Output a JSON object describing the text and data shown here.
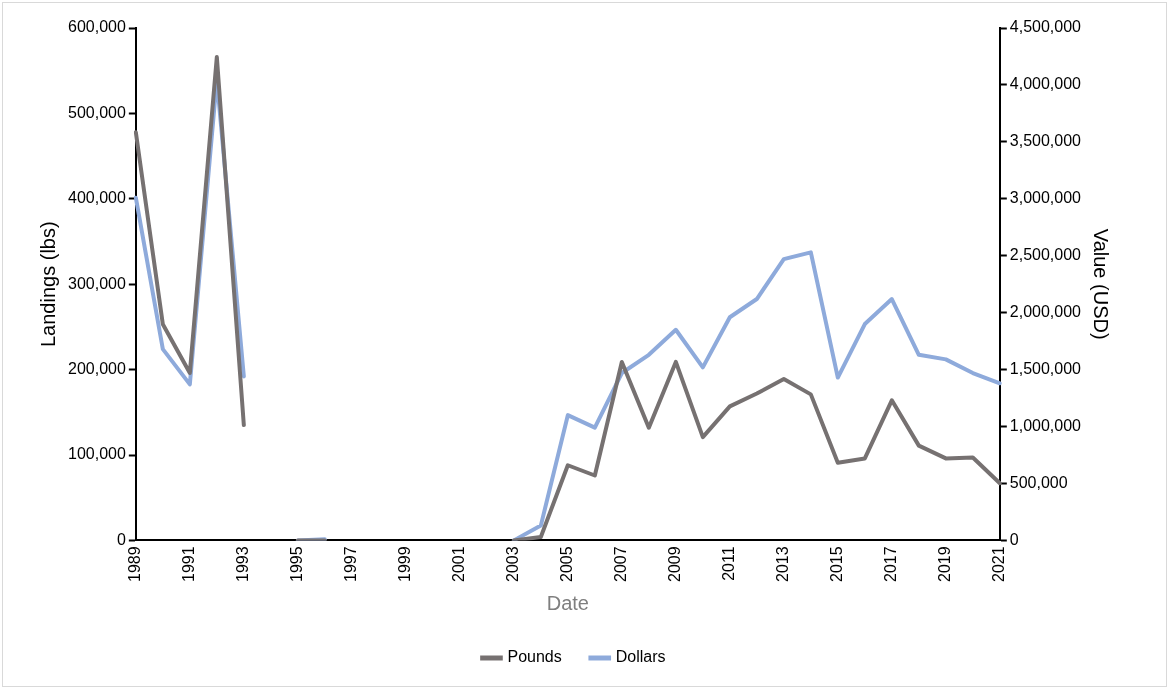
{
  "chart_data": {
    "type": "line",
    "xlabel": "Date",
    "ylabel": "Landings (lbs)",
    "y2label": "Value (USD)",
    "categories": [
      "1989",
      null,
      "1991",
      null,
      "1993",
      null,
      "1995",
      null,
      "1997",
      null,
      "1999",
      null,
      "2001",
      null,
      "2003",
      null,
      "2005",
      null,
      "2007",
      null,
      "2009",
      null,
      "2011",
      null,
      "2013",
      null,
      "2015",
      null,
      "2017",
      null,
      "2019",
      null,
      "2021"
    ],
    "series": [
      {
        "name": "Pounds",
        "color": "#767171",
        "values": [
          478000,
          253000,
          196000,
          566000,
          135000,
          null,
          0,
          0,
          null,
          null,
          null,
          null,
          null,
          null,
          0,
          4000,
          88000,
          76000,
          209000,
          132000,
          209000,
          121000,
          157000,
          172000,
          189000,
          171000,
          91000,
          96000,
          164000,
          111000,
          96000,
          97000,
          67000
        ]
      },
      {
        "name": "Dollars",
        "color": "#8eaadb",
        "axis": "y2",
        "values": [
          3010000,
          1680000,
          1370000,
          4050000,
          1440000,
          null,
          0,
          10000,
          null,
          null,
          null,
          null,
          null,
          null,
          0,
          130000,
          1100000,
          990000,
          1470000,
          1630000,
          1850000,
          1520000,
          1960000,
          2120000,
          2470000,
          2530000,
          1430000,
          1900000,
          2120000,
          1630000,
          1590000,
          1470000,
          1380000
        ]
      }
    ],
    "ylim": [
      0,
      600000
    ],
    "yticks": [
      0,
      {
        "value": 100000,
        "label": "100,000"
      },
      {
        "value": 200000,
        "label": "200,000"
      },
      {
        "value": 300000,
        "label": "300,000"
      },
      {
        "value": 400000,
        "label": "400,000"
      },
      {
        "value": 500000,
        "label": "500,000"
      },
      {
        "value": 600000,
        "label": "600,000"
      }
    ],
    "y2lim": [
      0,
      4500000
    ],
    "y2ticks": [
      0,
      {
        "value": 500000,
        "label": "500,000"
      },
      {
        "value": 1000000,
        "label": "1,000,000"
      },
      {
        "value": 1500000,
        "label": "1,500,000"
      },
      {
        "value": 2000000,
        "label": "2,000,000"
      },
      {
        "value": 2500000,
        "label": "2,500,000"
      },
      {
        "value": 3000000,
        "label": "3,000,000"
      },
      {
        "value": 3500000,
        "label": "3,500,000"
      },
      {
        "value": 4000000,
        "label": "4,000,000"
      },
      {
        "value": 4500000,
        "label": "4,500,000"
      }
    ],
    "grid": false,
    "legend": "bottom",
    "marker": "none",
    "line_style": "solid"
  }
}
